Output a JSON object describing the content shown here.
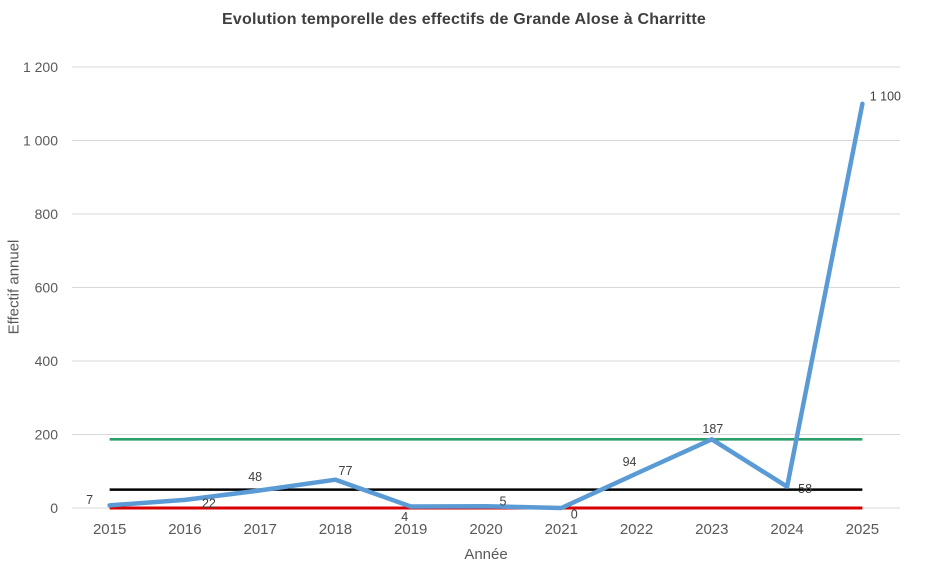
{
  "chart_data": {
    "type": "line",
    "title": "Evolution temporelle des effectifs de Grande Alose à Charritte",
    "xlabel": "Année",
    "ylabel": "Effectif annuel",
    "categories": [
      "2015",
      "2016",
      "2017",
      "2018",
      "2019",
      "2020",
      "2021",
      "2022",
      "2023",
      "2024",
      "2025"
    ],
    "series": [
      {
        "name": "Effectif annuel",
        "values": [
          7,
          22,
          48,
          77,
          4,
          5,
          0,
          94,
          187,
          58,
          1100
        ],
        "labels": [
          "7",
          "22",
          "48",
          "77",
          "4",
          "5",
          "0",
          "94",
          "187",
          "58",
          "1 100"
        ],
        "color": "#5B9BD5",
        "label_offsets": [
          [
            -20,
            -6
          ],
          [
            24,
            3
          ],
          [
            -5,
            -14
          ],
          [
            10,
            -9
          ],
          [
            -6,
            10
          ],
          [
            17,
            -5
          ],
          [
            13,
            6
          ],
          [
            -7,
            -12
          ],
          [
            1,
            -11
          ],
          [
            18,
            2
          ],
          [
            23,
            -8
          ]
        ]
      }
    ],
    "reference_lines": [
      {
        "name": "max-line",
        "value": 187,
        "color": "#2E9E6B"
      },
      {
        "name": "mean-line",
        "value": 50,
        "color": "#000000"
      },
      {
        "name": "min-line",
        "value": 0,
        "color": "#D90000"
      }
    ],
    "ylim": [
      0,
      1200
    ],
    "ytick_values": [
      0,
      200,
      400,
      600,
      800,
      1000,
      1200
    ],
    "ytick_labels": [
      "0",
      "200",
      "400",
      "600",
      "800",
      "1 000",
      "1 200"
    ],
    "grid": "horizontal",
    "gridline_color": "#D9D9D9",
    "legend": "none",
    "tick_color": "#595959",
    "title_color": "#3f3f3f",
    "data_label_color": "#404040"
  }
}
